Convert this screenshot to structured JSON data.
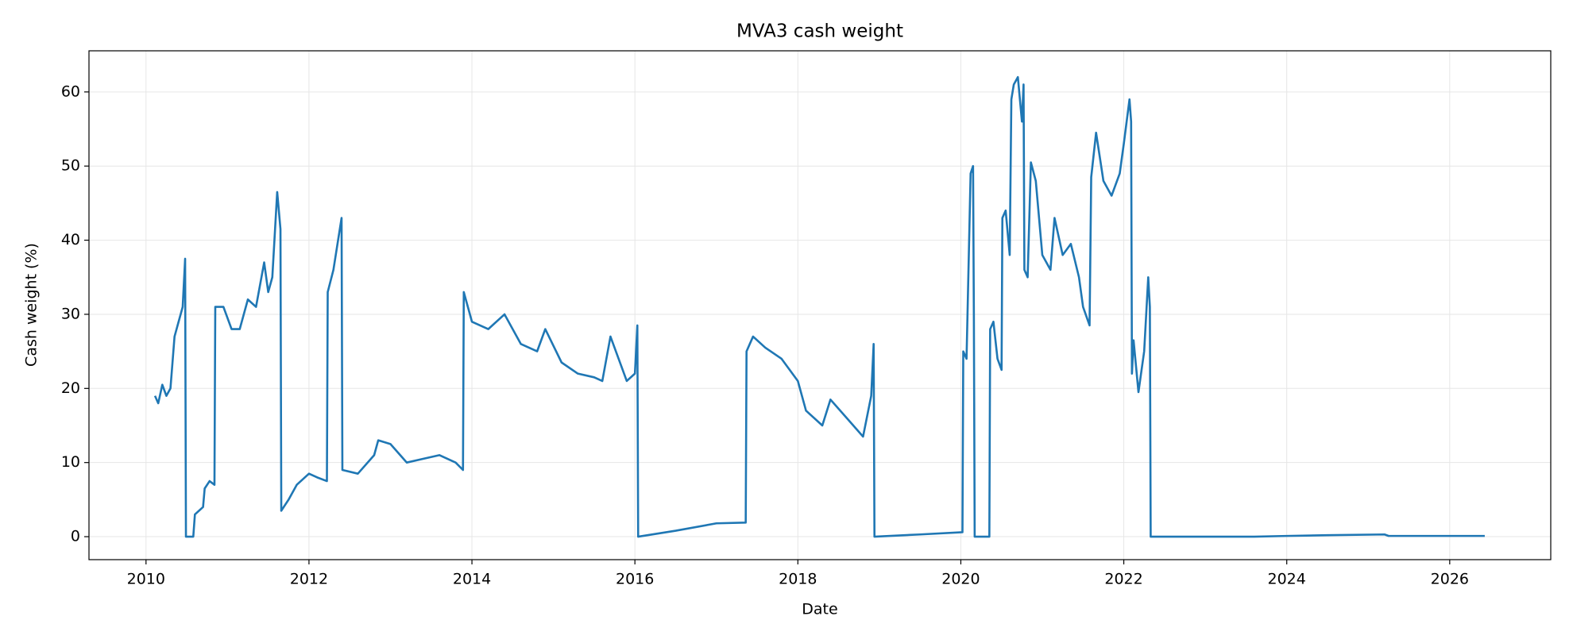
{
  "chart_data": {
    "type": "line",
    "title": "MVA3 cash weight",
    "xlabel": "Date",
    "ylabel": "Cash weight (%)",
    "x": [
      2010.11,
      2010.15,
      2010.2,
      2010.25,
      2010.3,
      2010.35,
      2010.4,
      2010.45,
      2010.48,
      2010.49,
      2010.58,
      2010.6,
      2010.7,
      2010.72,
      2010.78,
      2010.84,
      2010.85,
      2010.95,
      2011.05,
      2011.15,
      2011.25,
      2011.35,
      2011.45,
      2011.5,
      2011.55,
      2011.61,
      2011.65,
      2011.66,
      2011.75,
      2011.85,
      2012.0,
      2012.1,
      2012.22,
      2012.23,
      2012.3,
      2012.4,
      2012.41,
      2012.6,
      2012.8,
      2012.85,
      2013.0,
      2013.2,
      2013.4,
      2013.6,
      2013.8,
      2013.89,
      2013.9,
      2014.0,
      2014.2,
      2014.4,
      2014.6,
      2014.8,
      2014.9,
      2015.1,
      2015.3,
      2015.5,
      2015.6,
      2015.7,
      2015.8,
      2015.9,
      2016.0,
      2016.03,
      2016.04,
      2016.5,
      2017.0,
      2017.36,
      2017.37,
      2017.45,
      2017.6,
      2017.8,
      2018.0,
      2018.1,
      2018.3,
      2018.4,
      2018.6,
      2018.8,
      2018.9,
      2018.93,
      2018.94,
      2019.5,
      2020.02,
      2020.03,
      2020.07,
      2020.12,
      2020.15,
      2020.16,
      2020.17,
      2020.35,
      2020.36,
      2020.4,
      2020.45,
      2020.5,
      2020.51,
      2020.55,
      2020.6,
      2020.62,
      2020.65,
      2020.7,
      2020.75,
      2020.77,
      2020.78,
      2020.82,
      2020.86,
      2020.92,
      2021.0,
      2021.1,
      2021.15,
      2021.25,
      2021.35,
      2021.45,
      2021.5,
      2021.58,
      2021.6,
      2021.66,
      2021.75,
      2021.85,
      2021.95,
      2022.0,
      2022.07,
      2022.09,
      2022.1,
      2022.12,
      2022.18,
      2022.25,
      2022.3,
      2022.32,
      2022.33,
      2023.0,
      2023.6,
      2024.0,
      2024.5,
      2025.2,
      2025.25,
      2026.43
    ],
    "series": [
      {
        "name": "MVA3",
        "color": "#1f77b4",
        "values": [
          19,
          18,
          20.5,
          19,
          20,
          27,
          29,
          31,
          37.5,
          0,
          0,
          3,
          4,
          6.5,
          7.5,
          7,
          31,
          31,
          28,
          28,
          32,
          31,
          37,
          33,
          35,
          46.5,
          41.5,
          3.5,
          5,
          7,
          8.5,
          8,
          7.5,
          33,
          36,
          43,
          9,
          8.5,
          11,
          13,
          12.5,
          10,
          10.5,
          11,
          10,
          9,
          33,
          29,
          28,
          30,
          26,
          25,
          28,
          23.5,
          22,
          21.5,
          21,
          27,
          24,
          21,
          22,
          28.5,
          0,
          0.8,
          1.8,
          1.9,
          25,
          27,
          25.5,
          24,
          21,
          17,
          15,
          18.5,
          16,
          13.5,
          19,
          26,
          0,
          0.3,
          0.6,
          25,
          24,
          49,
          50,
          30,
          0,
          0,
          28,
          29,
          24,
          22.5,
          43,
          44,
          38,
          59,
          61,
          62,
          56,
          61,
          36,
          35,
          50.5,
          48,
          38,
          36,
          43,
          38,
          39.5,
          35,
          31,
          28.5,
          48.5,
          54.5,
          48,
          46,
          49,
          53,
          59,
          56,
          22,
          26.5,
          19.5,
          25,
          35,
          31,
          0,
          0,
          0,
          0.1,
          0.2,
          0.3,
          0.1,
          0.1
        ]
      }
    ],
    "xlim": [
      2009.3,
      2027.24
    ],
    "xticks": [
      2010,
      2012,
      2014,
      2016,
      2018,
      2020,
      2022,
      2024,
      2026
    ],
    "ylim": [
      -3.1,
      65.55
    ],
    "yticks": [
      0,
      10,
      20,
      30,
      40,
      50,
      60
    ],
    "grid": true
  }
}
